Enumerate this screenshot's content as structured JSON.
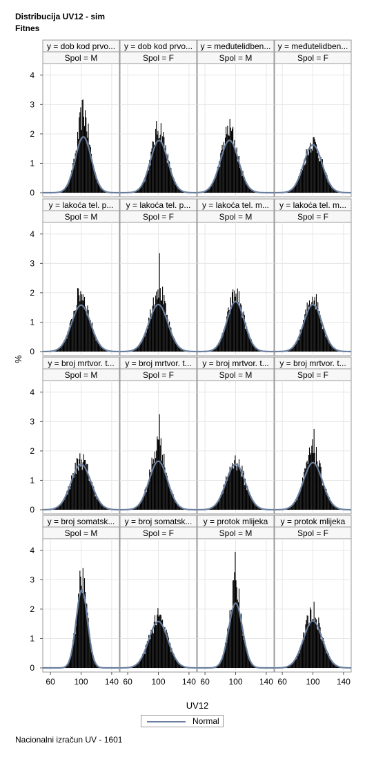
{
  "title_line1": "Distribucija UV12 - sim",
  "title_line2": "Fitnes",
  "footnote": "Nacionalni izračun UV - 1601",
  "colors": {
    "histogram": "#000000",
    "normal_curve": "#6a7f9f",
    "grid": "#e6e6e6",
    "header_bg": "#f7f7f7",
    "frame": "#9a9a9a"
  },
  "chart_data": {
    "type": "histogram-panel",
    "xlabel": "UV12",
    "ylabel": "%",
    "x_ticks": [
      60,
      100,
      140
    ],
    "xlim": [
      50,
      150
    ],
    "y_ticks": [
      0,
      1,
      2,
      3,
      4
    ],
    "ylim": [
      0,
      4.3
    ],
    "grid": true,
    "legend": {
      "position": "bottom",
      "entries": [
        "Normal"
      ]
    },
    "panels": [
      {
        "y_label": "y = dob kod prvo...",
        "spol_label": "Spol = M",
        "mean": 103,
        "sd": 10.5,
        "hist_peak": 2.75,
        "curve_peak": 1.9,
        "spike": null
      },
      {
        "y_label": "y = dob kod prvo...",
        "spol_label": "Spol = F",
        "mean": 101,
        "sd": 11.5,
        "hist_peak": 2.2,
        "curve_peak": 1.78,
        "spike": null
      },
      {
        "y_label": "y = međutelidben...",
        "spol_label": "Spol = M",
        "mean": 92,
        "sd": 12,
        "hist_peak": 2.15,
        "curve_peak": 1.78,
        "spike": null
      },
      {
        "y_label": "y = međutelidben...",
        "spol_label": "Spol = F",
        "mean": 100,
        "sd": 12,
        "hist_peak": 1.72,
        "curve_peak": 1.63,
        "spike": null
      },
      {
        "y_label": "y = lakoća tel. p...",
        "spol_label": "Spol = M",
        "mean": 100,
        "sd": 12.5,
        "hist_peak": 2.0,
        "curve_peak": 1.58,
        "spike": null
      },
      {
        "y_label": "y = lakoća tel. p...",
        "spol_label": "Spol = F",
        "mean": 100,
        "sd": 12.5,
        "hist_peak": 2.2,
        "curve_peak": 1.6,
        "spike": {
          "x": 101,
          "y": 3.35
        }
      },
      {
        "y_label": "y = lakoća tel. m...",
        "spol_label": "Spol = M",
        "mean": 100,
        "sd": 11.5,
        "hist_peak": 1.95,
        "curve_peak": 1.7,
        "spike": null
      },
      {
        "y_label": "y = lakoća tel. m...",
        "spol_label": "Spol = F",
        "mean": 100,
        "sd": 12,
        "hist_peak": 1.85,
        "curve_peak": 1.6,
        "spike": null
      },
      {
        "y_label": "y = broj mrtvor. t...",
        "spol_label": "Spol = M",
        "mean": 100,
        "sd": 13,
        "hist_peak": 1.7,
        "curve_peak": 1.55,
        "spike": null
      },
      {
        "y_label": "y = broj mrtvor. t...",
        "spol_label": "Spol = F",
        "mean": 100,
        "sd": 12,
        "hist_peak": 2.3,
        "curve_peak": 1.65,
        "spike": {
          "x": 101,
          "y": 3.25
        }
      },
      {
        "y_label": "y = broj mrtvor. t...",
        "spol_label": "Spol = M",
        "mean": 100,
        "sd": 12.5,
        "hist_peak": 1.65,
        "curve_peak": 1.55,
        "spike": null
      },
      {
        "y_label": "y = broj mrtvor. t...",
        "spol_label": "Spol = F",
        "mean": 100,
        "sd": 12.5,
        "hist_peak": 2.0,
        "curve_peak": 1.6,
        "spike": {
          "x": 101,
          "y": 2.75
        }
      },
      {
        "y_label": "y = broj somatsk...",
        "spol_label": "Spol = M",
        "mean": 101,
        "sd": 7.5,
        "hist_peak": 3.1,
        "curve_peak": 2.65,
        "spike": {
          "x": 102,
          "y": 3.4
        }
      },
      {
        "y_label": "y = broj somatsk...",
        "spol_label": "Spol = F",
        "mean": 100,
        "sd": 12.5,
        "hist_peak": 1.7,
        "curve_peak": 1.58,
        "spike": null
      },
      {
        "y_label": "y = protok mlijeka",
        "spol_label": "Spol = M",
        "mean": 100,
        "sd": 9,
        "hist_peak": 2.8,
        "curve_peak": 2.2,
        "spike": {
          "x": 99,
          "y": 3.95
        }
      },
      {
        "y_label": "y = protok mlijeka",
        "spol_label": "Spol = F",
        "mean": 100,
        "sd": 12.5,
        "hist_peak": 1.92,
        "curve_peak": 1.6,
        "spike": null
      }
    ]
  }
}
